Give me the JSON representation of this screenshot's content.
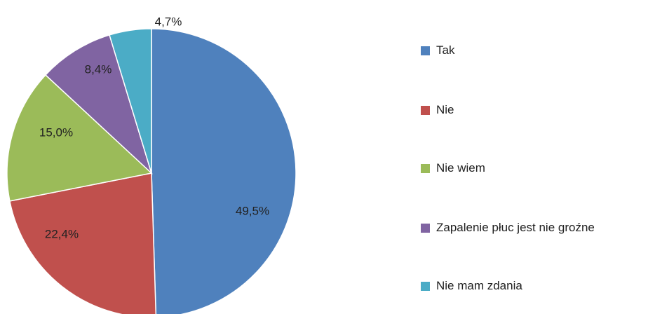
{
  "chart_data": {
    "type": "pie",
    "categories": [
      "Tak",
      "Nie",
      "Nie wiem",
      "Zapalenie płuc jest nie groźne",
      "Nie mam zdania"
    ],
    "values": [
      49.5,
      22.4,
      15.0,
      8.4,
      4.7
    ],
    "value_labels": [
      "49,5%",
      "22,4%",
      "15,0%",
      "8,4%",
      "4,7%"
    ],
    "colors": [
      "#4f81bd",
      "#c0504d",
      "#9bbb59",
      "#8064a2",
      "#4bacc6"
    ],
    "legend": "right"
  }
}
